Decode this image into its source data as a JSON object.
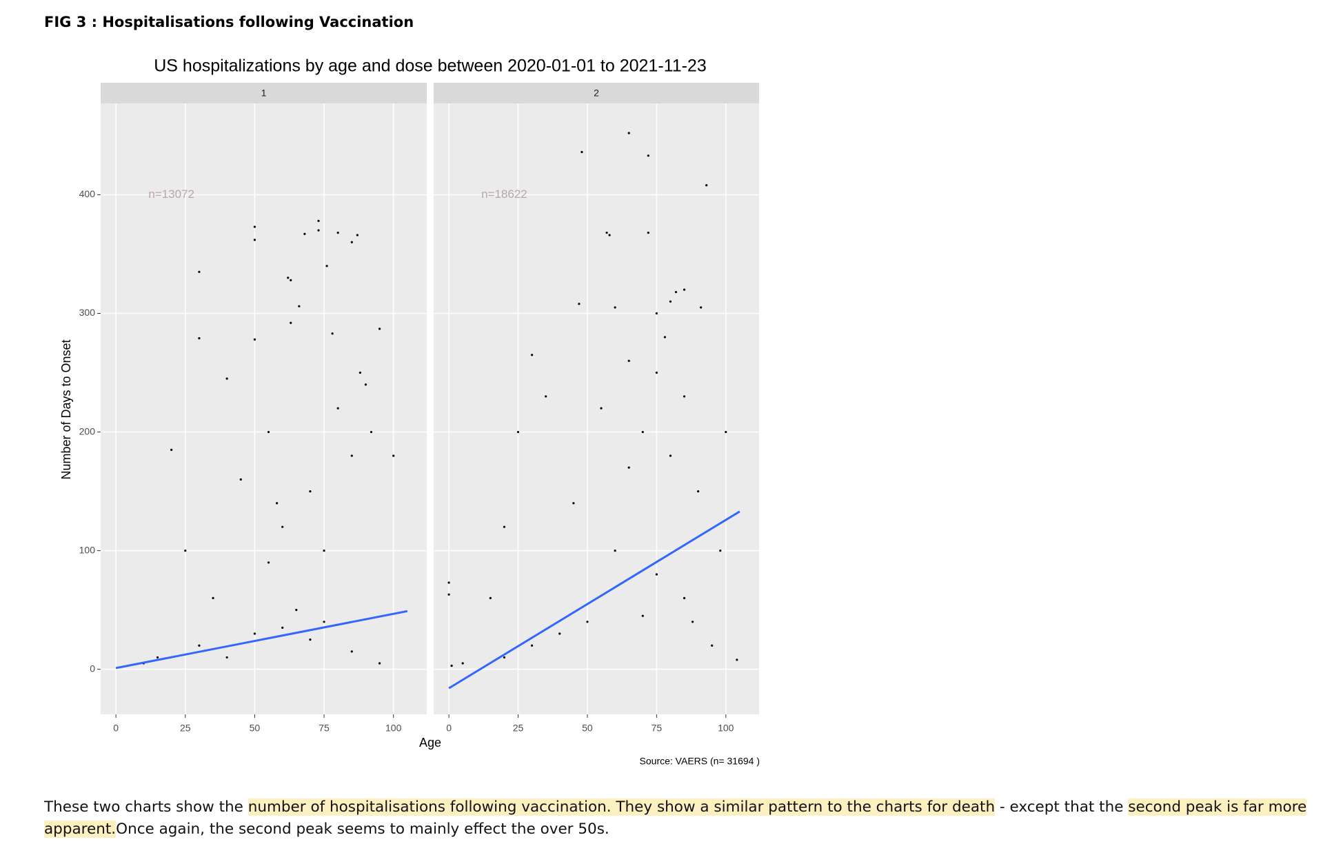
{
  "document": {
    "heading": "FIG 3 : Hospitalisations following Vaccination",
    "paragraph": [
      {
        "text": "These two charts show the ",
        "highlight": false
      },
      {
        "text": "number of hospitalisations following vaccination. They show a similar pattern to the charts for death",
        "highlight": true
      },
      {
        "text": " - except that the ",
        "highlight": false
      },
      {
        "text": "second peak is far more apparent.",
        "highlight": true
      },
      {
        "text": "Once again, the second peak seems to mainly effect the over 50s.",
        "highlight": false
      }
    ]
  },
  "chart_data": {
    "type": "scatter",
    "title": "US hospitalizations by age and dose between 2020-01-01 to 2021-11-23",
    "x_label": "Age",
    "y_label": "Number of Days to Onset",
    "source": "Source: VAERS (n= 31694 )",
    "xlim": [
      -5.5,
      112
    ],
    "ylim": [
      -38,
      477
    ],
    "xticks": [
      0,
      25,
      50,
      75,
      100
    ],
    "yticks": [
      0,
      100,
      200,
      300,
      400
    ],
    "grid": true,
    "point_color": "#000000",
    "trend_color": "#3366ff",
    "facets": [
      {
        "strip": "1",
        "annotation": "n=13072",
        "annotation_x": 20,
        "annotation_y": 400,
        "points": {
          "x": [
            50,
            50,
            62,
            63,
            68,
            73,
            73,
            76,
            80,
            85,
            87,
            30,
            30,
            66,
            63,
            50,
            78,
            95,
            40,
            55,
            70,
            80,
            60,
            45,
            85,
            75,
            20,
            35,
            90,
            100,
            65,
            30,
            50,
            70,
            85,
            15,
            95,
            40,
            60,
            75,
            25,
            55,
            10,
            88,
            92,
            58
          ],
          "y": [
            373,
            362,
            330,
            328,
            367,
            370,
            378,
            340,
            368,
            360,
            366,
            335,
            279,
            306,
            292,
            278,
            283,
            287,
            245,
            200,
            150,
            220,
            120,
            160,
            180,
            100,
            185,
            60,
            240,
            180,
            50,
            20,
            30,
            25,
            15,
            10,
            5,
            10,
            35,
            40,
            100,
            90,
            5,
            250,
            200,
            140
          ]
        },
        "trend": {
          "x": [
            0,
            105
          ],
          "y": [
            1,
            49
          ]
        }
      },
      {
        "strip": "2",
        "annotation": "n=18622",
        "annotation_x": 20,
        "annotation_y": 400,
        "points": {
          "x": [
            48,
            65,
            72,
            93,
            57,
            58,
            72,
            85,
            82,
            60,
            47,
            80,
            91,
            78,
            75,
            85,
            70,
            65,
            80,
            90,
            55,
            45,
            35,
            30,
            25,
            20,
            15,
            0,
            0,
            1,
            5,
            60,
            75,
            85,
            70,
            50,
            40,
            30,
            20,
            95,
            100,
            98,
            104,
            88,
            65,
            75
          ],
          "y": [
            436,
            452,
            433,
            408,
            368,
            366,
            368,
            320,
            318,
            305,
            308,
            310,
            305,
            280,
            250,
            230,
            200,
            170,
            180,
            150,
            220,
            140,
            230,
            265,
            200,
            120,
            60,
            73,
            63,
            3,
            5,
            100,
            80,
            60,
            45,
            40,
            30,
            20,
            10,
            20,
            200,
            100,
            8,
            40,
            260,
            300
          ]
        },
        "trend": {
          "x": [
            0,
            105
          ],
          "y": [
            -16,
            133
          ]
        }
      }
    ]
  }
}
